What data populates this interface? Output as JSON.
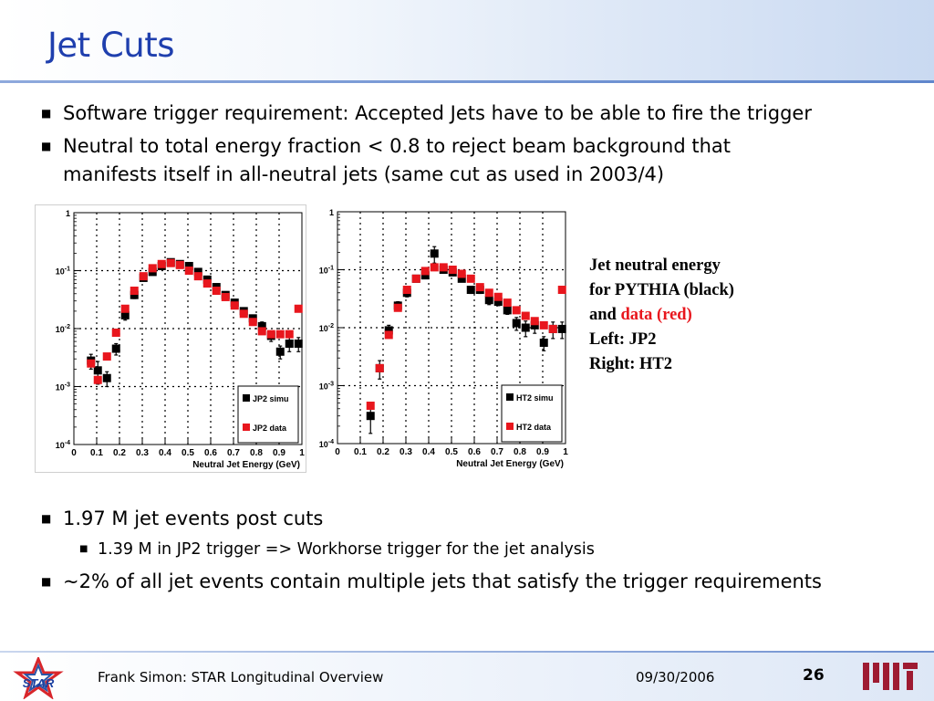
{
  "slide": {
    "title": "Jet Cuts",
    "bullets_top": [
      "Software trigger requirement: Accepted Jets have to be able to fire the trigger",
      "Neutral to total energy fraction < 0.8 to reject beam background that",
      "manifests itself in all-neutral jets (same cut as used in 2003/4)"
    ],
    "bullets_bottom": {
      "b1": "1.97 M jet events post cuts",
      "b1_sub": "1.39 M in JP2 trigger => Workhorse trigger for the jet analysis",
      "b2": "~2% of all jet events contain multiple jets that satisfy the trigger requirements"
    },
    "caption": {
      "line1": "Jet neutral energy",
      "line2": "for PYTHIA (black)",
      "line3_a": "and ",
      "line3_b": "data (red)",
      "line4": "Left: JP2",
      "line5": "Right: HT2"
    },
    "footer": {
      "author": "Frank Simon: STAR Longitudinal Overview",
      "date": "09/30/2006",
      "page": "26",
      "star_logo": "STAR"
    }
  },
  "colors": {
    "title": "#1f3fae",
    "data": "#e8161d",
    "simu": "#000000"
  },
  "chart_data": [
    {
      "type": "scatter",
      "panel": "left",
      "xlabel": "Neutral Jet Energy (GeV)",
      "ylabel": "",
      "xlim": [
        0,
        1
      ],
      "ylim": [
        0.0001,
        1
      ],
      "log_y": true,
      "grid": true,
      "x_ticks": [
        "0",
        "0.1",
        "0.2",
        "0.3",
        "0.4",
        "0.5",
        "0.6",
        "0.7",
        "0.8",
        "0.9",
        "1"
      ],
      "y_ticks": [
        "1",
        "10^-1",
        "10^-2",
        "10^-3",
        "10^-4"
      ],
      "legend_position": "bottom-right",
      "series": [
        {
          "name": "JP2 simu",
          "color": "#000000",
          "x": [
            0.075,
            0.105,
            0.145,
            0.185,
            0.225,
            0.265,
            0.305,
            0.345,
            0.385,
            0.425,
            0.465,
            0.505,
            0.545,
            0.585,
            0.625,
            0.665,
            0.705,
            0.745,
            0.785,
            0.825,
            0.865,
            0.905,
            0.945,
            0.985
          ],
          "y": [
            0.0028,
            0.0019,
            0.0014,
            0.0045,
            0.017,
            0.038,
            0.075,
            0.095,
            0.12,
            0.14,
            0.13,
            0.12,
            0.095,
            0.07,
            0.052,
            0.038,
            0.028,
            0.02,
            0.015,
            0.011,
            0.0075,
            0.004,
            0.0055,
            0.0055
          ],
          "y_err": [
            0.0008,
            0.0008,
            0.0004,
            0.001,
            0.003,
            0.005,
            0.008,
            0.01,
            0.012,
            0.012,
            0.012,
            0.01,
            0.008,
            0.006,
            0.005,
            0.004,
            0.003,
            0.002,
            0.002,
            0.002,
            0.0015,
            0.001,
            0.0015,
            0.0015
          ]
        },
        {
          "name": "JP2 data",
          "color": "#e8161d",
          "x": [
            0.075,
            0.105,
            0.145,
            0.185,
            0.225,
            0.265,
            0.305,
            0.345,
            0.385,
            0.425,
            0.465,
            0.505,
            0.545,
            0.585,
            0.625,
            0.665,
            0.705,
            0.745,
            0.785,
            0.825,
            0.865,
            0.905,
            0.945,
            0.985
          ],
          "y": [
            0.0025,
            0.0013,
            0.0033,
            0.0085,
            0.022,
            0.045,
            0.08,
            0.11,
            0.13,
            0.135,
            0.125,
            0.1,
            0.08,
            0.06,
            0.045,
            0.035,
            0.025,
            0.018,
            0.013,
            0.009,
            0.008,
            0.008,
            0.008,
            0.022
          ]
        }
      ]
    },
    {
      "type": "scatter",
      "panel": "right",
      "xlabel": "Neutral Jet Energy (GeV)",
      "ylabel": "",
      "xlim": [
        0,
        1
      ],
      "ylim": [
        0.0001,
        1
      ],
      "log_y": true,
      "grid": true,
      "x_ticks": [
        "0",
        "0.1",
        "0.2",
        "0.3",
        "0.4",
        "0.5",
        "0.6",
        "0.7",
        "0.8",
        "0.9",
        "1"
      ],
      "y_ticks": [
        "1",
        "10^-1",
        "10^-2",
        "10^-3",
        "10^-4"
      ],
      "legend_position": "bottom-right",
      "series": [
        {
          "name": "HT2 simu",
          "color": "#000000",
          "x": [
            0.145,
            0.185,
            0.225,
            0.265,
            0.305,
            0.345,
            0.385,
            0.425,
            0.465,
            0.505,
            0.545,
            0.585,
            0.625,
            0.665,
            0.705,
            0.745,
            0.785,
            0.825,
            0.865,
            0.905,
            0.945,
            0.985
          ],
          "y": [
            0.0003,
            0.002,
            0.009,
            0.024,
            0.04,
            0.07,
            0.08,
            0.19,
            0.1,
            0.09,
            0.07,
            0.045,
            0.045,
            0.03,
            0.028,
            0.02,
            0.012,
            0.01,
            0.011,
            0.0055,
            0.0095,
            0.0095
          ],
          "y_err": [
            0.00015,
            0.0007,
            0.002,
            0.004,
            0.006,
            0.008,
            0.01,
            0.06,
            0.012,
            0.01,
            0.008,
            0.006,
            0.006,
            0.005,
            0.004,
            0.003,
            0.003,
            0.003,
            0.003,
            0.0015,
            0.003,
            0.003
          ]
        },
        {
          "name": "HT2 data",
          "color": "#e8161d",
          "x": [
            0.145,
            0.185,
            0.225,
            0.265,
            0.305,
            0.345,
            0.385,
            0.425,
            0.465,
            0.505,
            0.545,
            0.585,
            0.625,
            0.665,
            0.705,
            0.745,
            0.785,
            0.825,
            0.865,
            0.905,
            0.945,
            0.985
          ],
          "y": [
            0.00045,
            0.002,
            0.0075,
            0.022,
            0.045,
            0.07,
            0.095,
            0.11,
            0.11,
            0.1,
            0.085,
            0.07,
            0.05,
            0.04,
            0.034,
            0.027,
            0.02,
            0.016,
            0.013,
            0.011,
            0.0095,
            0.045
          ]
        }
      ]
    }
  ]
}
